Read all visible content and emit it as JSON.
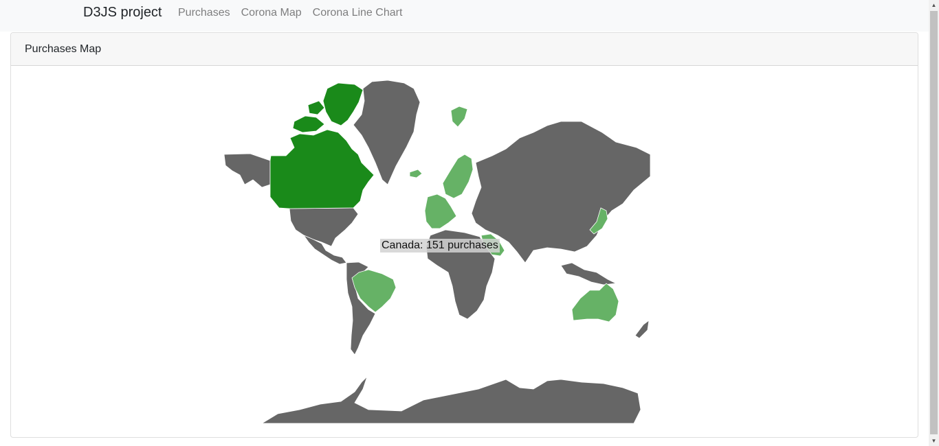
{
  "navbar": {
    "brand": "D3JS project",
    "links": [
      "Purchases",
      "Corona Map",
      "Corona Line Chart"
    ]
  },
  "card": {
    "title": "Purchases Map"
  },
  "map": {
    "tooltip": "Canada: 151 purchases",
    "colors": {
      "no_data": "#666666",
      "high": "#1a8a1a",
      "medium": "#66b266",
      "border": "#ffffff"
    },
    "regions": [
      {
        "name": "Canada",
        "level": "high"
      },
      {
        "name": "Brazil",
        "level": "medium"
      },
      {
        "name": "Australia",
        "level": "medium"
      },
      {
        "name": "Saudi Arabia",
        "level": "medium"
      },
      {
        "name": "Sweden",
        "level": "medium"
      },
      {
        "name": "Norway",
        "level": "medium"
      },
      {
        "name": "Finland",
        "level": "medium"
      },
      {
        "name": "Svalbard",
        "level": "medium"
      },
      {
        "name": "Iceland",
        "level": "medium"
      },
      {
        "name": "Japan",
        "level": "medium"
      },
      {
        "name": "Western Europe",
        "level": "medium"
      }
    ]
  }
}
